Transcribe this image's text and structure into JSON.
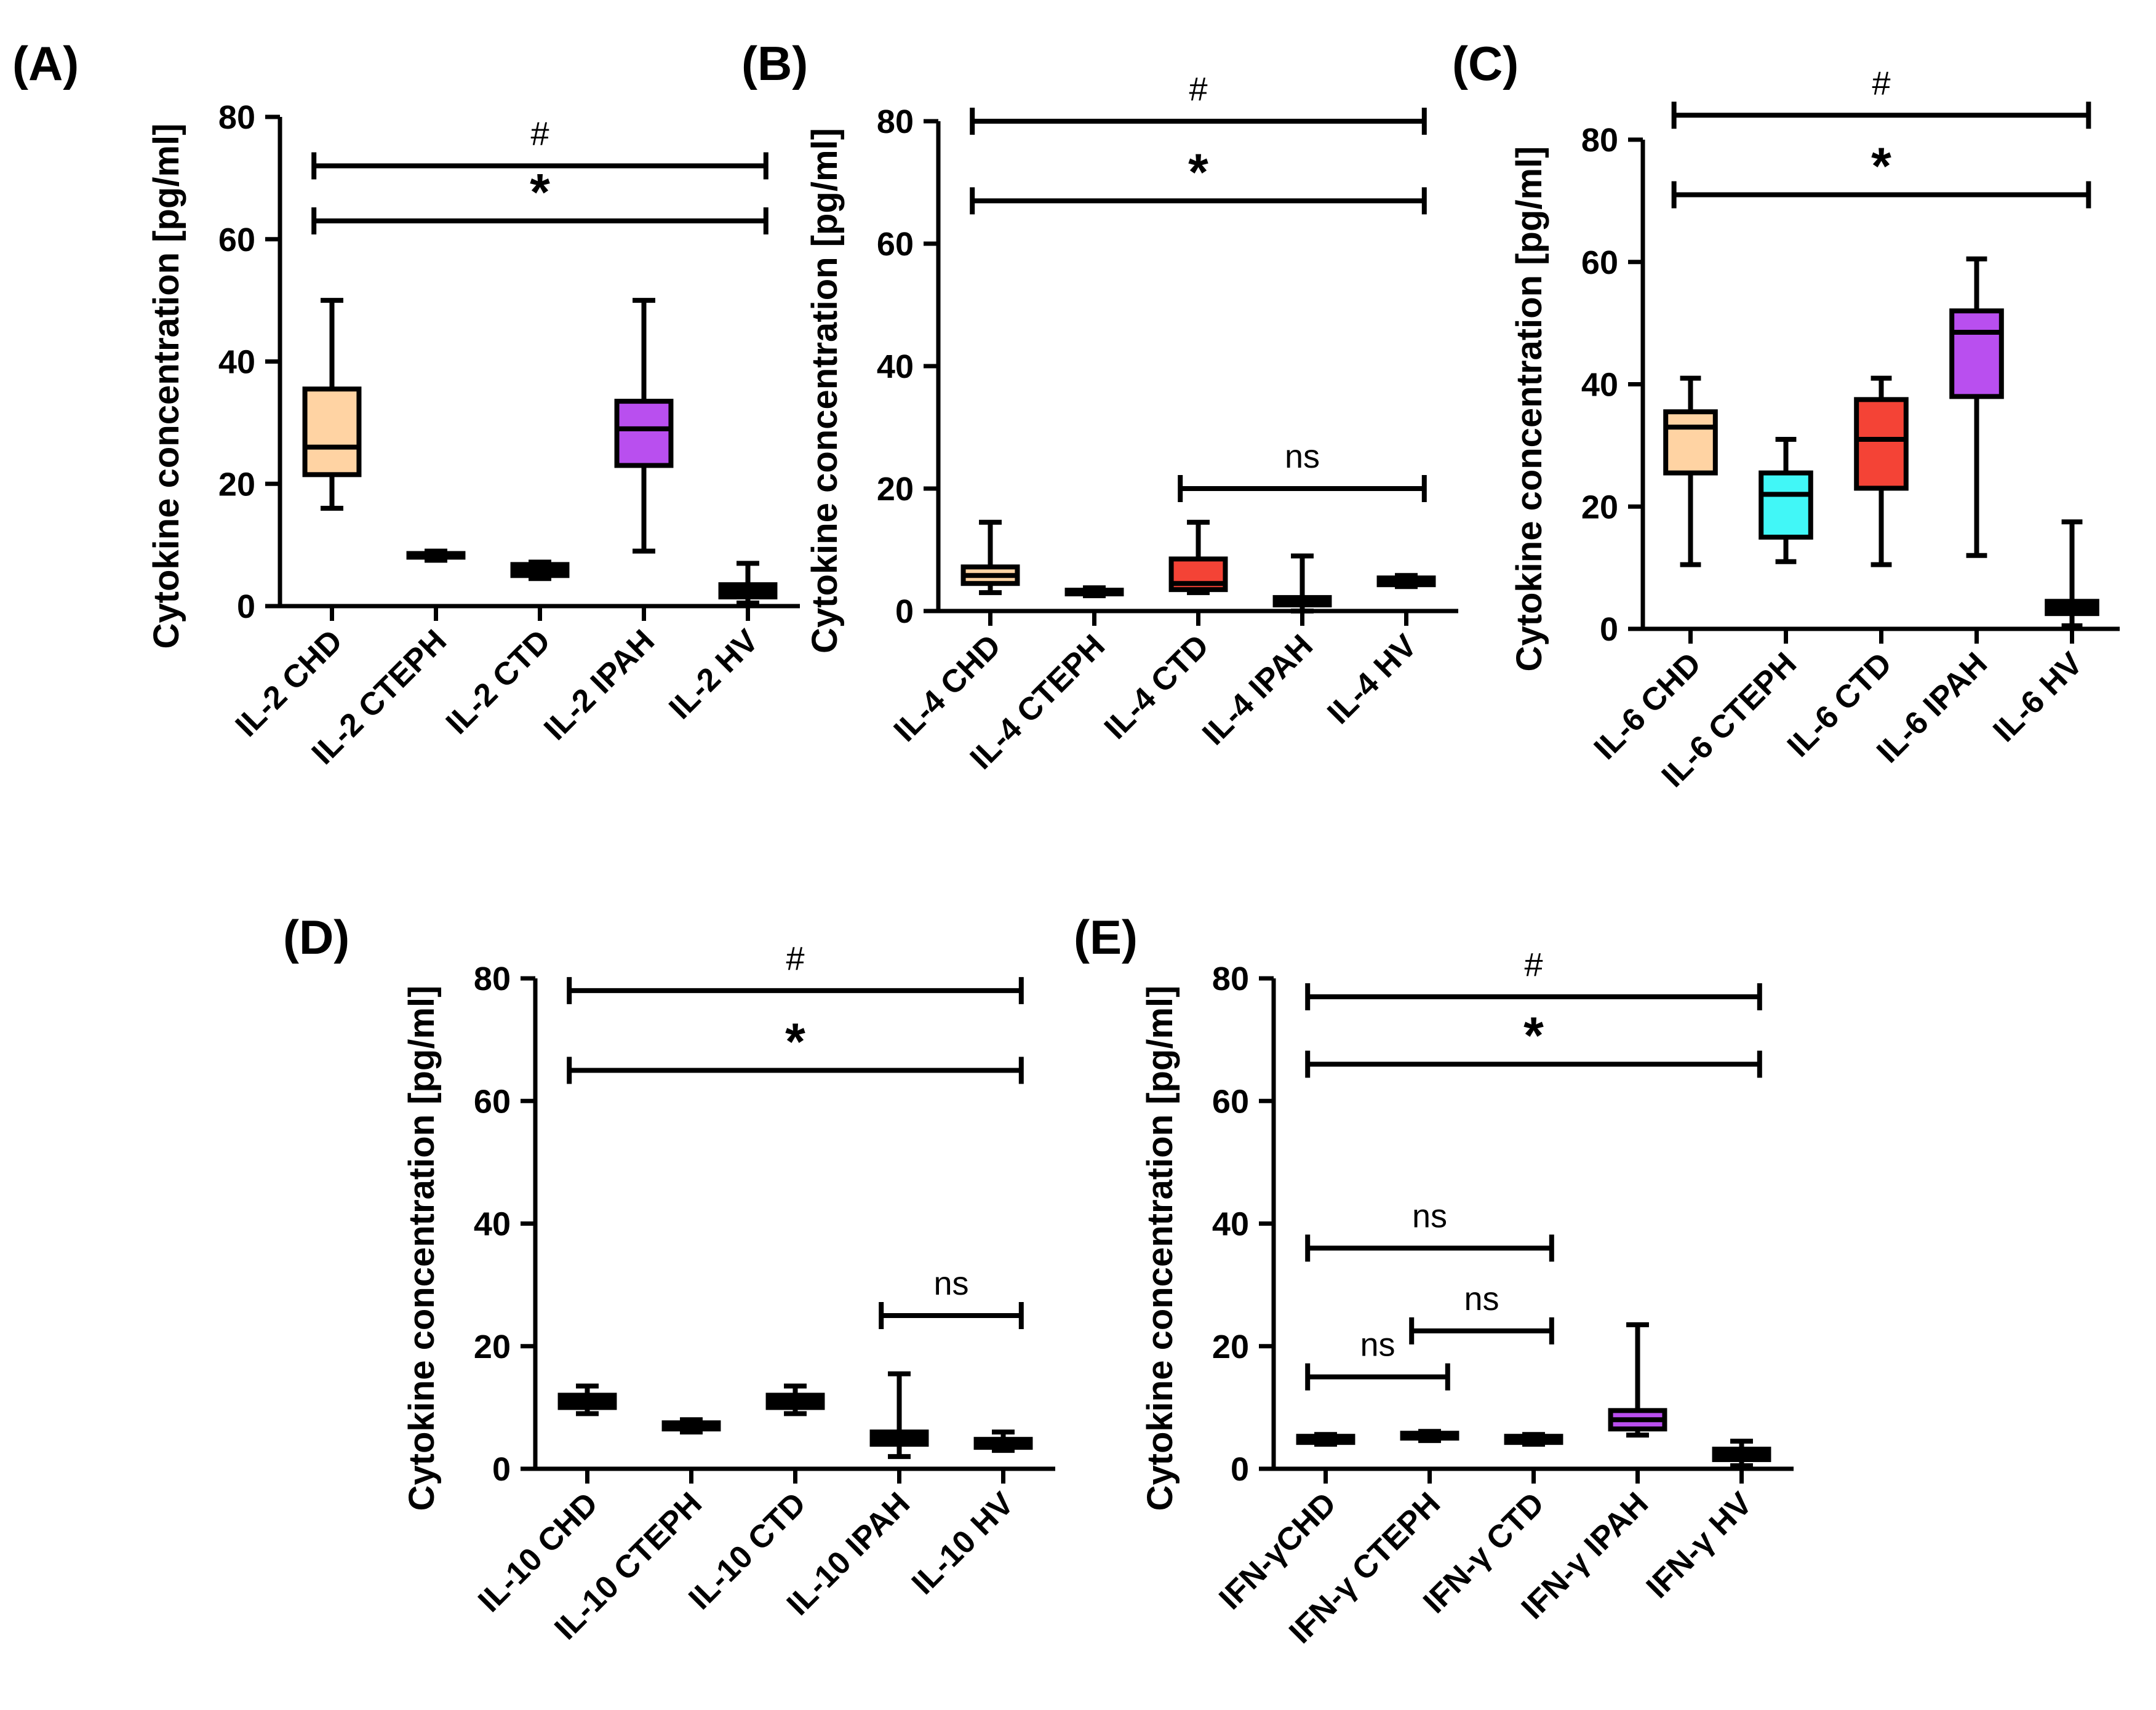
{
  "figure": {
    "y_axis_label": "Cytokine concentration [pg/ml]"
  },
  "chart_data": [
    {
      "panel": "(A)",
      "type": "box",
      "ylabel": "Cytokine concentration [pg/ml]",
      "ylim": [
        0,
        80
      ],
      "yticks": [
        0,
        20,
        40,
        60,
        80
      ],
      "categories": [
        "IL-2 CHD",
        "IL-2 CTEPH",
        "IL-2 CTD",
        "IL-2 IPAH",
        "IL-2 HV"
      ],
      "boxes": [
        {
          "min": 16,
          "q1": 21.5,
          "median": 26,
          "q3": 35.5,
          "max": 50,
          "color": "#FFD3A3"
        },
        {
          "min": 7.5,
          "q1": 8,
          "median": 8.3,
          "q3": 8.6,
          "max": 9,
          "color": "#000000"
        },
        {
          "min": 4.5,
          "q1": 5,
          "median": 5.8,
          "q3": 6.8,
          "max": 7.2,
          "color": "#000000"
        },
        {
          "min": 9,
          "q1": 23,
          "median": 29,
          "q3": 33.5,
          "max": 50,
          "color": "#B94FEF"
        },
        {
          "min": 0.5,
          "q1": 1.5,
          "median": 2.5,
          "q3": 3.5,
          "max": 7,
          "color": "#000000"
        }
      ],
      "brackets": [
        {
          "from": 0,
          "to": 4,
          "y": 72,
          "label": "#"
        },
        {
          "from": 0,
          "to": 4,
          "y": 63,
          "label": "*"
        }
      ]
    },
    {
      "panel": "(B)",
      "type": "box",
      "ylabel": "Cytokine concentration [pg/ml]",
      "ylim": [
        0,
        80
      ],
      "yticks": [
        0,
        20,
        40,
        60,
        80
      ],
      "categories": [
        "IL-4 CHD",
        "IL-4 CTEPH",
        "IL-4 CTD",
        "IL-4 IPAH",
        "IL-4 HV"
      ],
      "boxes": [
        {
          "min": 3,
          "q1": 4.5,
          "median": 5.8,
          "q3": 7.2,
          "max": 14.5,
          "color": "#FFD3A3"
        },
        {
          "min": 2.5,
          "q1": 2.8,
          "median": 3,
          "q3": 3.4,
          "max": 3.8,
          "color": "#000000"
        },
        {
          "min": 3,
          "q1": 3.5,
          "median": 4.5,
          "q3": 8.5,
          "max": 14.5,
          "color": "#F44336"
        },
        {
          "min": 0,
          "q1": 1,
          "median": 1.5,
          "q3": 2.2,
          "max": 9,
          "color": "#000000"
        },
        {
          "min": 4,
          "q1": 4.3,
          "median": 4.8,
          "q3": 5.4,
          "max": 5.8,
          "color": "#000000"
        }
      ],
      "brackets": [
        {
          "from": 0,
          "to": 4,
          "y": 80,
          "label": "#"
        },
        {
          "from": 0,
          "to": 4,
          "y": 67,
          "label": "*"
        },
        {
          "from": 2,
          "to": 4,
          "y": 20,
          "label": "ns"
        }
      ]
    },
    {
      "panel": "(C)",
      "type": "box",
      "ylabel": "Cytokine concentration [pg/ml]",
      "ylim": [
        0,
        80
      ],
      "yticks": [
        0,
        20,
        40,
        60,
        80
      ],
      "categories": [
        "IL-6 CHD",
        "IL-6 CTEPH",
        "IL-6 CTD",
        "IL-6 IPAH",
        "IL-6 HV"
      ],
      "boxes": [
        {
          "min": 10.5,
          "q1": 25.5,
          "median": 33,
          "q3": 35.5,
          "max": 41,
          "color": "#FFD3A3"
        },
        {
          "min": 11,
          "q1": 15,
          "median": 22,
          "q3": 25.5,
          "max": 31,
          "color": "#41F7F7"
        },
        {
          "min": 10.5,
          "q1": 23,
          "median": 31,
          "q3": 37.5,
          "max": 41,
          "color": "#F44336"
        },
        {
          "min": 12,
          "q1": 38,
          "median": 48.5,
          "q3": 52,
          "max": 60.5,
          "color": "#B94FEF"
        },
        {
          "min": 0.5,
          "q1": 2.5,
          "median": 3.5,
          "q3": 4.5,
          "max": 17.5,
          "color": "#000000"
        }
      ],
      "brackets": [
        {
          "from": 0,
          "to": 4,
          "y": 84,
          "label": "#"
        },
        {
          "from": 0,
          "to": 4,
          "y": 71,
          "label": "*"
        }
      ]
    },
    {
      "panel": "(D)",
      "type": "box",
      "ylabel": "Cytokine concentration [pg/ml]",
      "ylim": [
        0,
        80
      ],
      "yticks": [
        0,
        20,
        40,
        60,
        80
      ],
      "categories": [
        "IL-10 CHD",
        "IL-10 CTEPH",
        "IL-10 CTD",
        "IL-10 IPAH",
        "IL-10 HV"
      ],
      "boxes": [
        {
          "min": 9,
          "q1": 10,
          "median": 11,
          "q3": 12,
          "max": 13.5,
          "color": "#000000"
        },
        {
          "min": 6,
          "q1": 6.5,
          "median": 7,
          "q3": 7.5,
          "max": 8,
          "color": "#000000"
        },
        {
          "min": 9,
          "q1": 10,
          "median": 11,
          "q3": 12,
          "max": 13.5,
          "color": "#000000"
        },
        {
          "min": 2,
          "q1": 4,
          "median": 5,
          "q3": 6,
          "max": 15.5,
          "color": "#000000"
        },
        {
          "min": 3,
          "q1": 3.5,
          "median": 4,
          "q3": 4.8,
          "max": 6,
          "color": "#000000"
        }
      ],
      "brackets": [
        {
          "from": 0,
          "to": 4,
          "y": 78,
          "label": "#"
        },
        {
          "from": 0,
          "to": 4,
          "y": 65,
          "label": "*"
        },
        {
          "from": 3,
          "to": 4,
          "y": 25,
          "label": "ns"
        }
      ]
    },
    {
      "panel": "(E)",
      "type": "box",
      "ylabel": "Cytokine concentration [pg/ml]",
      "ylim": [
        0,
        80
      ],
      "yticks": [
        0,
        20,
        40,
        60,
        80
      ],
      "categories": [
        "IFN-γCHD",
        "IFN-γ CTEPH",
        "IFN-γ CTD",
        "IFN-γ IPAH",
        "IFN-γ HV"
      ],
      "boxes": [
        {
          "min": 4,
          "q1": 4.3,
          "median": 4.8,
          "q3": 5.3,
          "max": 5.6,
          "color": "#000000"
        },
        {
          "min": 4.6,
          "q1": 5,
          "median": 5.3,
          "q3": 5.8,
          "max": 6.1,
          "color": "#000000"
        },
        {
          "min": 4,
          "q1": 4.3,
          "median": 4.8,
          "q3": 5.3,
          "max": 5.6,
          "color": "#000000"
        },
        {
          "min": 5.5,
          "q1": 6.5,
          "median": 8,
          "q3": 9.5,
          "max": 23.5,
          "color": "#B94FEF"
        },
        {
          "min": 0.5,
          "q1": 1.5,
          "median": 2.2,
          "q3": 3.2,
          "max": 4.5,
          "color": "#000000"
        }
      ],
      "brackets": [
        {
          "from": 0,
          "to": 4,
          "y": 77,
          "label": "#"
        },
        {
          "from": 0,
          "to": 4,
          "y": 66,
          "label": "*"
        },
        {
          "from": 0,
          "to": 2,
          "y": 36,
          "label": "ns"
        },
        {
          "from": 1,
          "to": 2,
          "y": 22.5,
          "label": "ns"
        },
        {
          "from": 0,
          "to": 1,
          "y": 15,
          "label": "ns"
        }
      ]
    }
  ]
}
